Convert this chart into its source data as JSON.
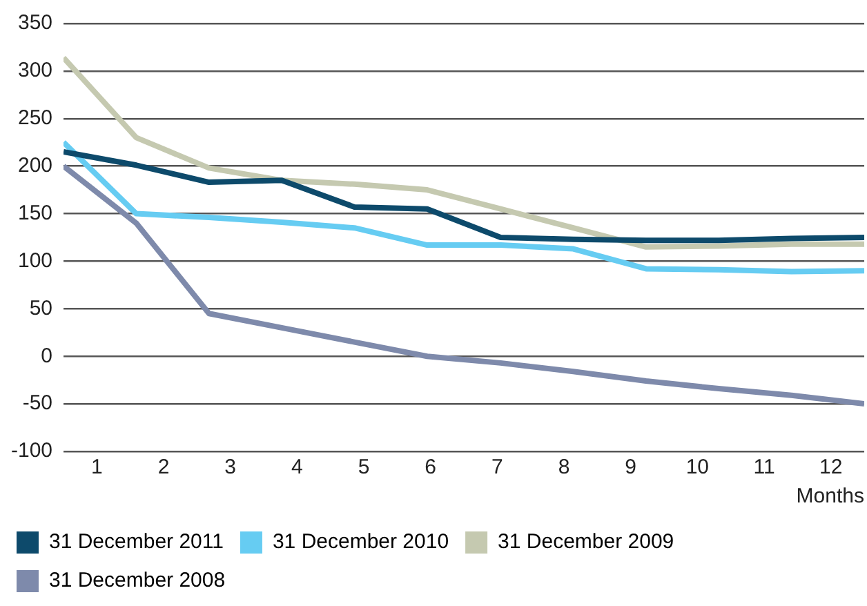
{
  "chart_data": {
    "type": "line",
    "xlabel": "Months",
    "x": [
      0.5,
      1.59,
      2.68,
      3.77,
      4.86,
      5.95,
      7.05,
      8.14,
      9.23,
      10.32,
      11.41,
      12.5
    ],
    "xlim": [
      0.5,
      12.5
    ],
    "xticks": [
      1,
      2,
      3,
      4,
      5,
      6,
      7,
      8,
      9,
      10,
      11,
      12
    ],
    "ylim": [
      -100,
      350
    ],
    "yticks": [
      -100,
      -50,
      0,
      50,
      100,
      150,
      200,
      250,
      300,
      350
    ],
    "grid": "y",
    "legend": "bottom",
    "marker": "none",
    "line_style": "solid",
    "series": [
      {
        "name": "31 December 2011",
        "color": "#0d4a6b",
        "values": [
          215,
          201,
          183,
          185,
          157,
          155,
          125,
          123,
          122,
          122,
          124,
          125
        ]
      },
      {
        "name": "31 December 2010",
        "color": "#66ccf2",
        "values": [
          225,
          150,
          146,
          141,
          135,
          117,
          117,
          113,
          92,
          91,
          89,
          90
        ]
      },
      {
        "name": "31 December 2009",
        "color": "#c5c9b0",
        "values": [
          314,
          230,
          198,
          185,
          181,
          175,
          155,
          135,
          115,
          116,
          118,
          118
        ]
      },
      {
        "name": "31 December 2008",
        "color": "#7e8aab",
        "values": [
          200,
          140,
          45,
          30,
          15,
          0,
          -7,
          -16,
          -26,
          -34,
          -41,
          -50
        ]
      }
    ]
  }
}
